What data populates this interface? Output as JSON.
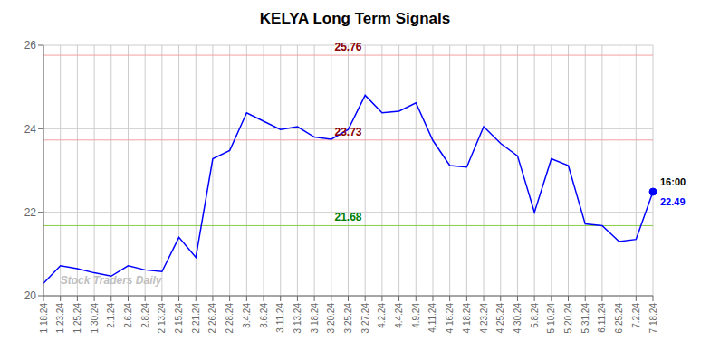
{
  "chart_data": {
    "type": "line",
    "title": "KELYA Long Term Signals",
    "categories": [
      "1.18.24",
      "1.23.24",
      "1.25.24",
      "1.30.24",
      "2.1.24",
      "2.6.24",
      "2.8.24",
      "2.13.24",
      "2.15.24",
      "2.21.24",
      "2.26.24",
      "2.28.24",
      "3.4.24",
      "3.6.24",
      "3.11.24",
      "3.13.24",
      "3.18.24",
      "3.20.24",
      "3.25.24",
      "3.27.24",
      "4.2.24",
      "4.4.24",
      "4.9.24",
      "4.11.24",
      "4.16.24",
      "4.18.24",
      "4.23.24",
      "4.25.24",
      "4.30.24",
      "5.8.24",
      "5.10.24",
      "5.20.24",
      "5.31.24",
      "6.11.24",
      "6.25.24",
      "7.2.24",
      "7.18.24"
    ],
    "values": [
      20.3,
      20.72,
      20.65,
      20.55,
      20.47,
      20.72,
      20.62,
      20.58,
      21.4,
      20.92,
      23.28,
      23.48,
      24.38,
      24.18,
      23.98,
      24.05,
      23.8,
      23.75,
      23.98,
      24.8,
      24.38,
      24.42,
      24.62,
      23.72,
      23.12,
      23.08,
      24.05,
      23.65,
      23.35,
      22.0,
      23.28,
      23.12,
      21.72,
      21.68,
      21.3,
      21.35,
      22.49
    ],
    "color": "blue",
    "ylim": [
      20,
      26
    ],
    "yticks": [
      20,
      22,
      24,
      26
    ],
    "grid": true,
    "reference_lines": [
      {
        "value": 25.76,
        "label": "25.76",
        "color": "#f4a0a0",
        "label_color": "darkred",
        "label_x": "3.25.24"
      },
      {
        "value": 23.73,
        "label": "23.73",
        "color": "#f4a0a0",
        "label_color": "darkred",
        "label_x": "3.25.24"
      },
      {
        "value": 21.68,
        "label": "21.68",
        "color": "#88cc44",
        "label_color": "green",
        "label_x": "3.25.24"
      }
    ],
    "last_point": {
      "label": "16:00",
      "value_label": "22.49",
      "label_color": "black",
      "value_color": "blue"
    },
    "watermark": {
      "text": "Stock Traders Daily",
      "x": "1.23.24",
      "y": 20.22,
      "color": "#c0c0c0"
    }
  }
}
